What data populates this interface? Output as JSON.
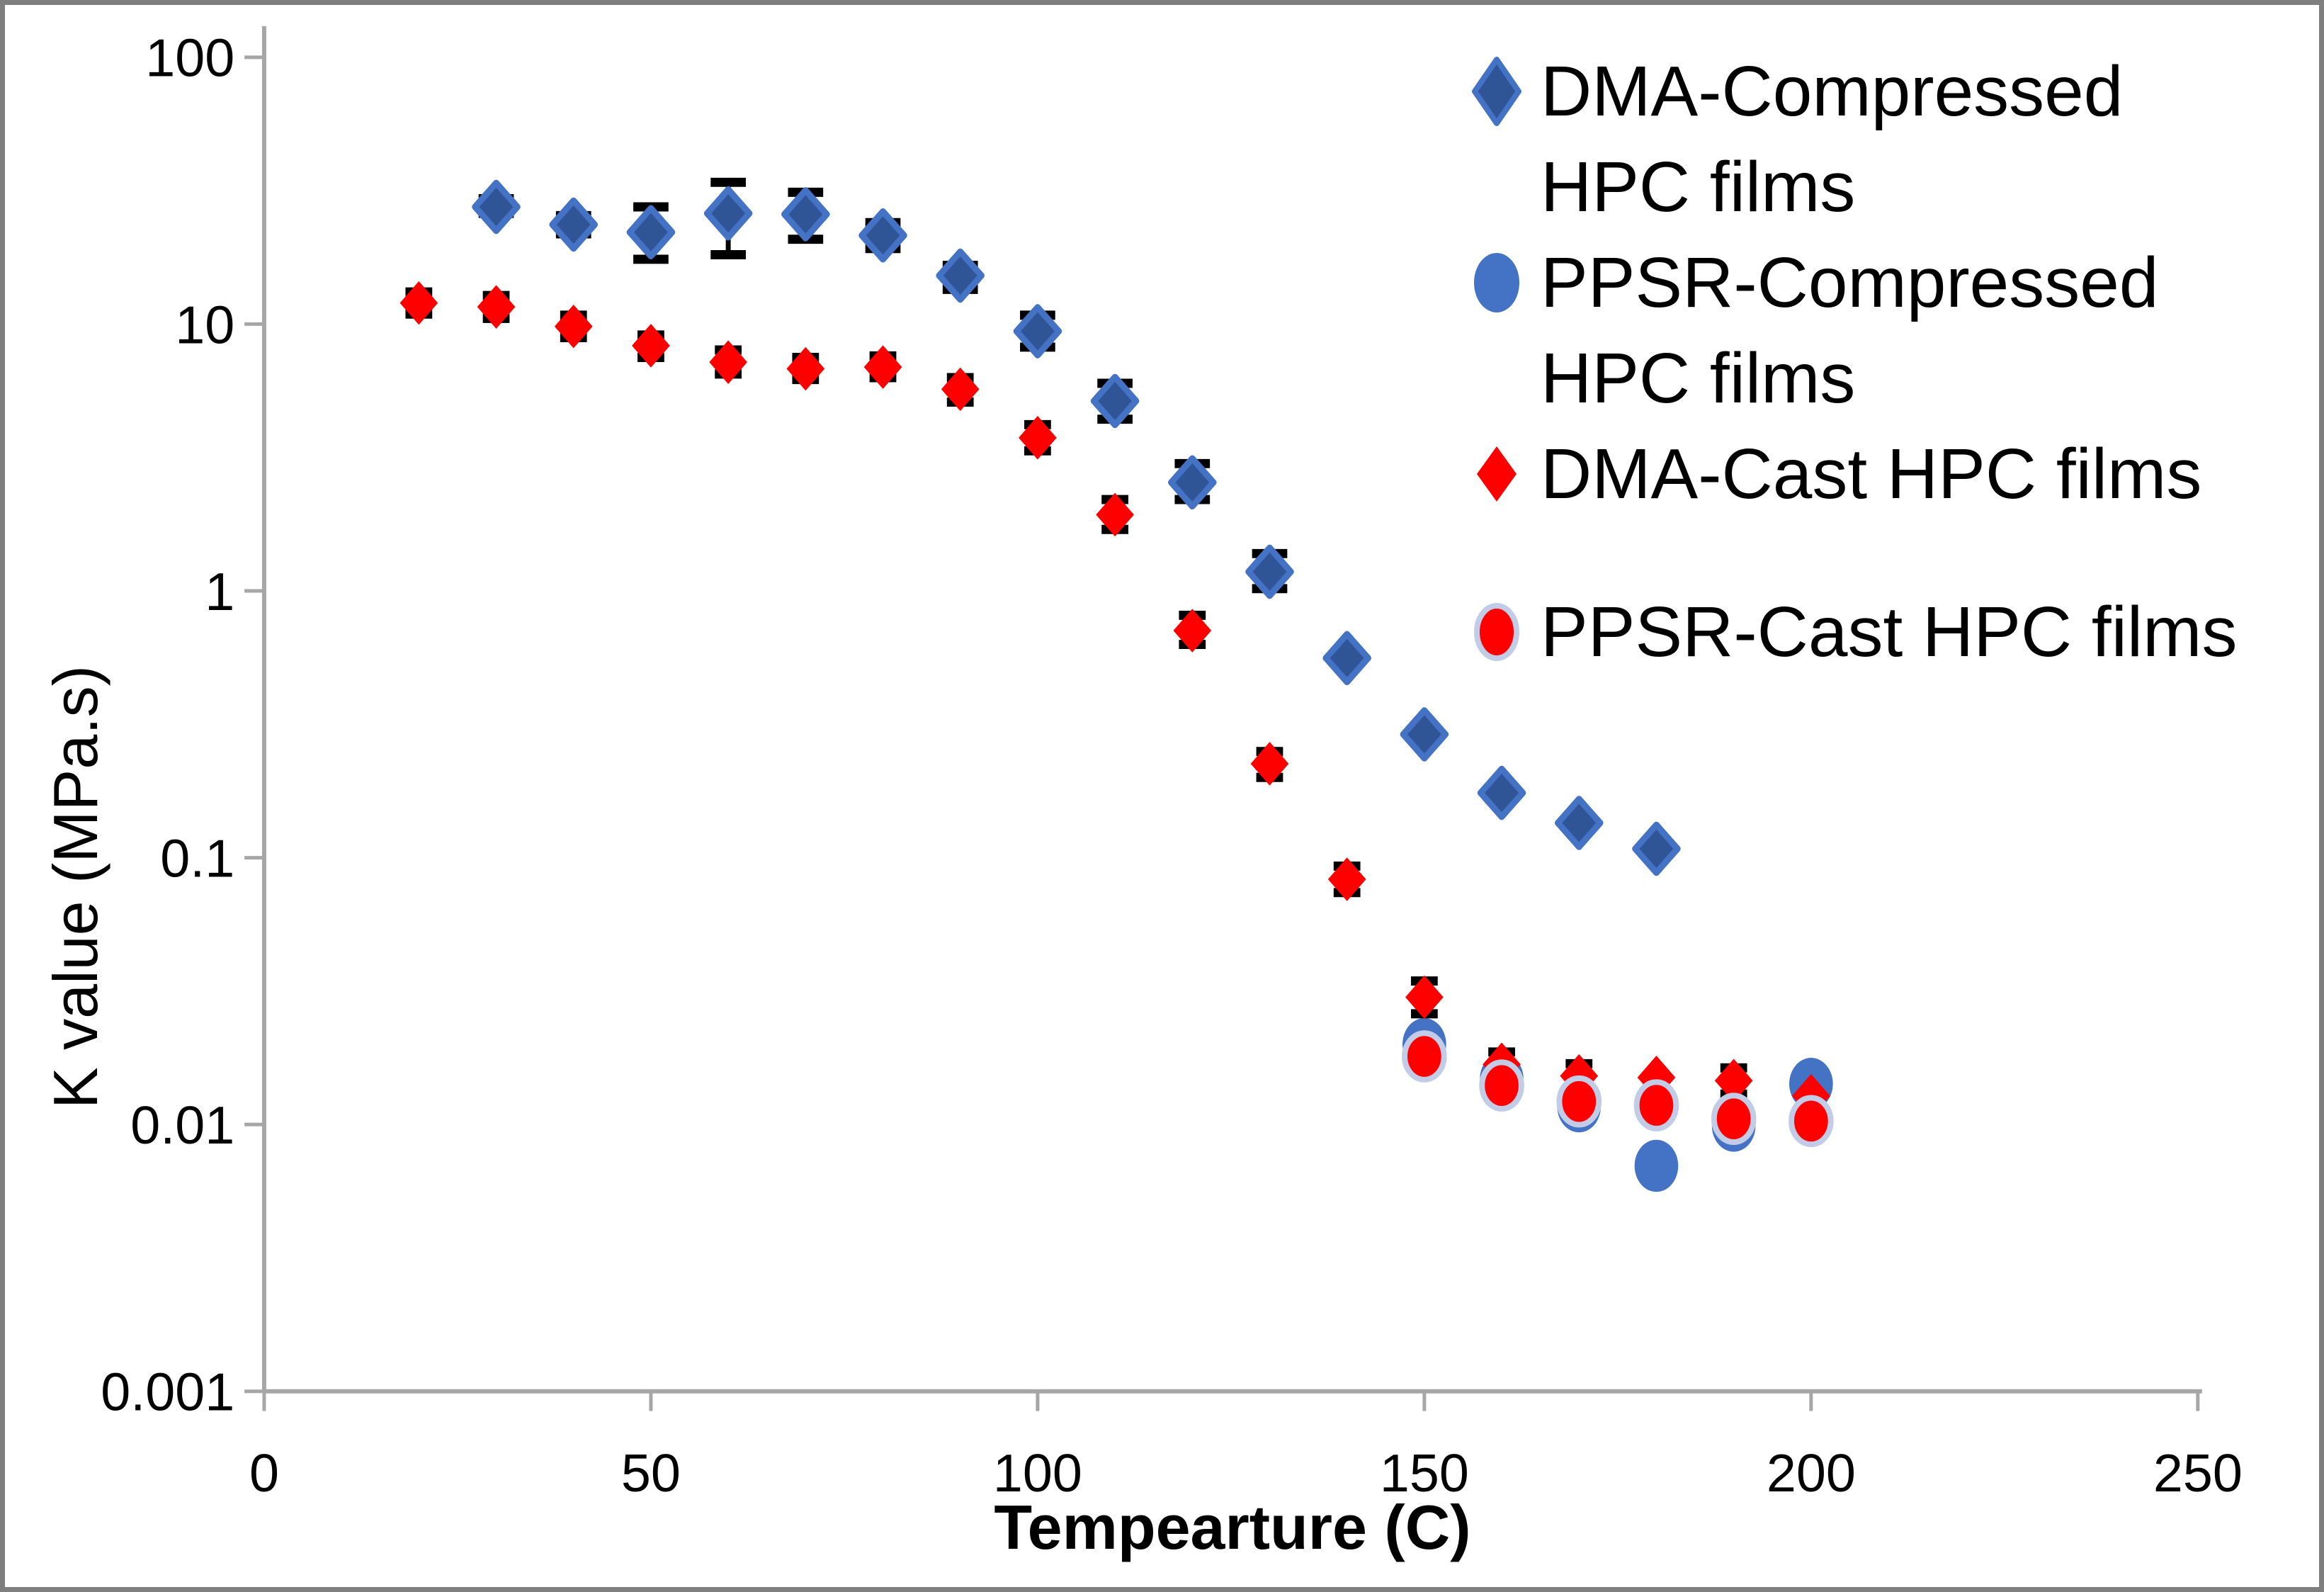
{
  "figure": {
    "background": "#FFFFFF",
    "border_color": "#7F7F7F"
  },
  "chart_data": {
    "type": "scatter",
    "title": "",
    "xlabel": "Tempearture (C)",
    "ylabel": "K value (MPa.s)",
    "axis_color": "#A6A6A6",
    "text_color": "#000000",
    "error_bar_color": "#000000",
    "legend_position": "top-right",
    "grid": false,
    "x_axis": {
      "min": 0,
      "max": 250,
      "ticks": [
        0,
        50,
        100,
        150,
        200,
        250
      ]
    },
    "y_axis": {
      "scale": "log",
      "min": 0.001,
      "max": 100,
      "ticks": [
        100,
        10,
        1,
        0.1,
        0.01,
        0.001
      ],
      "tick_labels": [
        "100",
        "10",
        "1",
        "0.1",
        "0.01",
        "0.001"
      ]
    },
    "point_format": "[temperature_C, k_value_MPa_s, err_low, err_high]",
    "series": [
      {
        "name": "DMA-Compressed HPC films",
        "marker": "diamond",
        "fill": "#2F5597",
        "stroke": "#4472C4",
        "points": [
          [
            30,
            27.5,
            26.0,
            29.5
          ],
          [
            40,
            23.6,
            21.8,
            25.5
          ],
          [
            50,
            22.1,
            17.5,
            27.5
          ],
          [
            60,
            26.0,
            18.2,
            34.0
          ],
          [
            70,
            25.8,
            20.8,
            31.2
          ],
          [
            80,
            21.5,
            19.2,
            24.0
          ],
          [
            90,
            15.2,
            13.5,
            16.6
          ],
          [
            100,
            9.4,
            8.2,
            10.8
          ],
          [
            110,
            5.15,
            4.4,
            6.0
          ],
          [
            120,
            2.55,
            2.2,
            3.0
          ],
          [
            130,
            1.18,
            1.02,
            1.38
          ],
          [
            140,
            0.56
          ],
          [
            150,
            0.29
          ],
          [
            160,
            0.175
          ],
          [
            170,
            0.135
          ],
          [
            180,
            0.108
          ]
        ]
      },
      {
        "name": "PPSR-Compressed HPC films",
        "marker": "circle",
        "fill": "#4472C4",
        "stroke": "#4472C4",
        "points": [
          [
            150,
            0.02
          ],
          [
            160,
            0.0148
          ],
          [
            170,
            0.0117
          ],
          [
            180,
            0.007
          ],
          [
            190,
            0.0099
          ],
          [
            200,
            0.0142
          ]
        ]
      },
      {
        "name": "DMA-Cast HPC films",
        "marker": "diamond",
        "fill": "#FF0000",
        "stroke": "#FF0000",
        "points": [
          [
            20,
            12.0,
            10.9,
            13.2
          ],
          [
            30,
            11.6,
            10.5,
            12.8
          ],
          [
            40,
            9.8,
            8.9,
            10.8
          ],
          [
            50,
            8.3,
            7.5,
            9.1
          ],
          [
            60,
            7.2,
            6.5,
            8.0
          ],
          [
            70,
            6.8,
            6.2,
            7.5
          ],
          [
            80,
            6.9,
            6.3,
            7.6
          ],
          [
            90,
            5.7,
            5.1,
            6.3
          ],
          [
            100,
            3.75,
            3.35,
            4.2
          ],
          [
            110,
            1.93,
            1.7,
            2.2
          ],
          [
            120,
            0.71,
            0.63,
            0.81
          ],
          [
            130,
            0.225,
            0.2,
            0.25
          ],
          [
            140,
            0.083,
            0.074,
            0.093
          ],
          [
            150,
            0.03,
            0.026,
            0.0345
          ],
          [
            160,
            0.0168,
            0.0149,
            0.0187
          ],
          [
            170,
            0.0152,
            0.0136,
            0.0169
          ],
          [
            180,
            0.015
          ],
          [
            190,
            0.0146,
            0.013,
            0.0163
          ],
          [
            200,
            0.0128
          ]
        ]
      },
      {
        "name": "PPSR-Cast HPC films",
        "marker": "circle-ring",
        "fill": "#FF0000",
        "stroke": "#C3CCE7",
        "points": [
          [
            150,
            0.018
          ],
          [
            160,
            0.014
          ],
          [
            170,
            0.0122
          ],
          [
            180,
            0.0118
          ],
          [
            190,
            0.0105
          ],
          [
            200,
            0.0103
          ]
        ]
      }
    ]
  }
}
